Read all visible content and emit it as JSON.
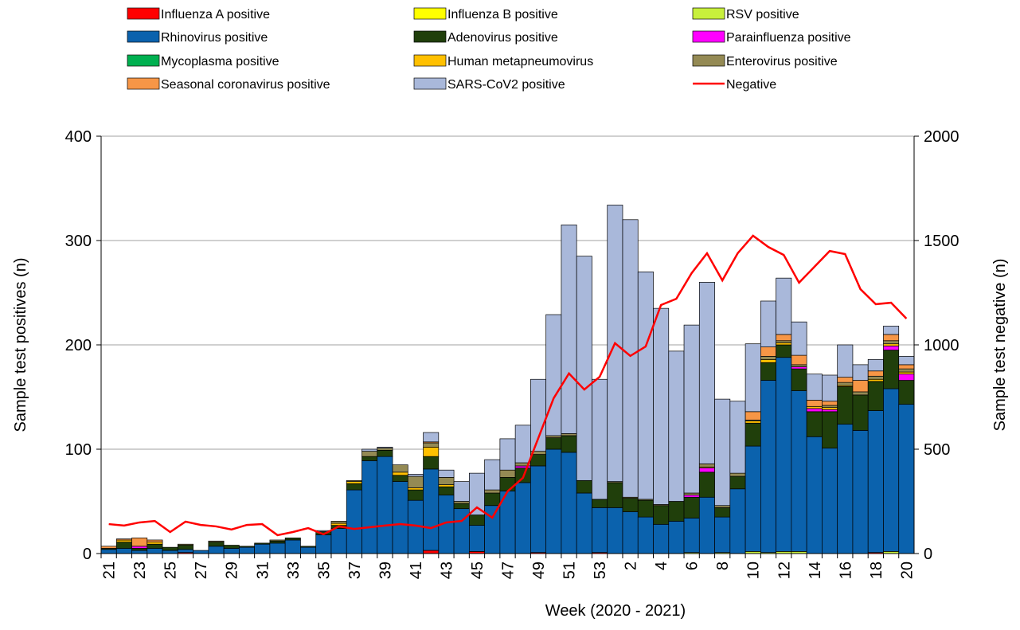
{
  "chart_data": {
    "type": "bar",
    "stacked": true,
    "xlabel": "Week (2020 - 2021)",
    "ylabel": "Sample test positives (n)",
    "y2label": "Sample test negative (n)",
    "categories": [
      "21",
      null,
      "23",
      null,
      "25",
      null,
      "27",
      null,
      "29",
      null,
      "31",
      null,
      "33",
      null,
      "35",
      null,
      "37",
      null,
      "39",
      null,
      "41",
      null,
      "43",
      null,
      "45",
      null,
      "47",
      null,
      "49",
      null,
      "51",
      null,
      "53",
      null,
      "2",
      null,
      "4",
      null,
      "6",
      null,
      "8",
      null,
      "10",
      null,
      "12",
      null,
      "14",
      null,
      "16",
      null,
      "18",
      null,
      "20"
    ],
    "ylim": [
      0,
      400
    ],
    "yticks": [
      0,
      100,
      200,
      300,
      400
    ],
    "y2lim": [
      0,
      2000
    ],
    "y2ticks": [
      0,
      500,
      1000,
      1500,
      2000
    ],
    "grid": true,
    "series": [
      {
        "name": "Influenza A positive",
        "color": "#ff0000",
        "values": [
          0,
          0,
          0,
          0,
          0,
          1,
          0,
          0,
          0,
          0,
          0,
          0,
          0,
          0,
          0,
          0,
          0,
          0,
          0,
          0,
          0,
          3,
          0,
          0,
          2,
          0,
          0,
          0,
          1,
          0,
          0,
          0,
          1,
          0,
          0,
          0,
          0,
          0,
          0,
          0,
          0,
          0,
          0,
          0,
          0,
          0,
          0,
          0,
          0,
          0,
          1,
          0,
          0
        ]
      },
      {
        "name": "Influenza B positive",
        "color": "#ffff00",
        "values": [
          0,
          0,
          0,
          0,
          0,
          0,
          0,
          0,
          0,
          0,
          0,
          0,
          0,
          0,
          0,
          0,
          0,
          0,
          0,
          0,
          0,
          0,
          0,
          0,
          0,
          0,
          0,
          0,
          0,
          0,
          0,
          0,
          0,
          0,
          0,
          0,
          0,
          0,
          0,
          0,
          0,
          0,
          0,
          0,
          0,
          0,
          0,
          0,
          0,
          0,
          0,
          0,
          0
        ]
      },
      {
        "name": "RSV positive",
        "color": "#c8f03c",
        "values": [
          0,
          0,
          0,
          0,
          0,
          0,
          0,
          0,
          0,
          0,
          0,
          0,
          0,
          0,
          0,
          0,
          0,
          0,
          0,
          0,
          0,
          0,
          0,
          0,
          0,
          0,
          0,
          0,
          0,
          0,
          0,
          0,
          0,
          0,
          0,
          0,
          0,
          0,
          1,
          0,
          1,
          0,
          2,
          1,
          2,
          2,
          0,
          0,
          0,
          0,
          0,
          2,
          0
        ]
      },
      {
        "name": "Rhinovirus positive",
        "color": "#0b62ad",
        "values": [
          4,
          5,
          3,
          5,
          3,
          3,
          3,
          7,
          5,
          6,
          9,
          10,
          13,
          6,
          18,
          24,
          61,
          89,
          93,
          69,
          51,
          78,
          56,
          43,
          25,
          46,
          60,
          68,
          83,
          100,
          97,
          58,
          43,
          44,
          40,
          35,
          28,
          31,
          33,
          54,
          34,
          62,
          101,
          165,
          186,
          154,
          112,
          101,
          124,
          118,
          136,
          156,
          143
        ]
      },
      {
        "name": "Adenovirus positive",
        "color": "#203f0b",
        "values": [
          1,
          6,
          2,
          4,
          3,
          4,
          0,
          4,
          3,
          1,
          1,
          2,
          2,
          1,
          3,
          3,
          6,
          4,
          6,
          6,
          10,
          12,
          8,
          5,
          10,
          12,
          13,
          14,
          11,
          11,
          16,
          12,
          8,
          24,
          13,
          16,
          18,
          19,
          20,
          24,
          9,
          12,
          22,
          17,
          12,
          21,
          24,
          35,
          36,
          34,
          28,
          37,
          23
        ]
      },
      {
        "name": "Parainfluenza positive",
        "color": "#ff00ff",
        "values": [
          0,
          0,
          2,
          0,
          0,
          0,
          0,
          0,
          0,
          0,
          0,
          0,
          0,
          0,
          0,
          0,
          0,
          0,
          0,
          0,
          0,
          0,
          0,
          0,
          0,
          0,
          0,
          2,
          0,
          0,
          0,
          0,
          0,
          0,
          0,
          0,
          0,
          0,
          2,
          4,
          0,
          0,
          0,
          0,
          0,
          2,
          3,
          2,
          0,
          0,
          0,
          4,
          6
        ]
      },
      {
        "name": "Mycoplasma positive",
        "color": "#00b050",
        "values": [
          0,
          0,
          0,
          0,
          0,
          0,
          0,
          0,
          0,
          0,
          0,
          0,
          0,
          0,
          0,
          0,
          0,
          0,
          0,
          0,
          0,
          0,
          0,
          0,
          0,
          0,
          0,
          0,
          0,
          0,
          0,
          0,
          0,
          0,
          0,
          0,
          0,
          0,
          0,
          0,
          0,
          0,
          0,
          0,
          0,
          0,
          0,
          0,
          0,
          0,
          0,
          0,
          0
        ]
      },
      {
        "name": "Human metapneumovirus",
        "color": "#ffc000",
        "values": [
          0,
          2,
          0,
          2,
          0,
          0,
          0,
          0,
          0,
          0,
          0,
          0,
          0,
          0,
          0,
          2,
          2,
          0,
          0,
          3,
          2,
          9,
          2,
          0,
          0,
          0,
          0,
          0,
          0,
          0,
          0,
          0,
          0,
          0,
          0,
          0,
          0,
          0,
          0,
          1,
          0,
          0,
          2,
          3,
          2,
          0,
          2,
          2,
          1,
          0,
          2,
          2,
          2
        ]
      },
      {
        "name": "Enterovirus positive",
        "color": "#948a54",
        "values": [
          0,
          0,
          0,
          0,
          0,
          1,
          0,
          1,
          0,
          0,
          0,
          1,
          0,
          0,
          0,
          2,
          1,
          5,
          2,
          7,
          11,
          4,
          7,
          2,
          0,
          3,
          7,
          3,
          3,
          2,
          2,
          0,
          0,
          1,
          1,
          1,
          1,
          0,
          2,
          3,
          2,
          3,
          1,
          3,
          2,
          2,
          0,
          2,
          3,
          3,
          3,
          3,
          3
        ]
      },
      {
        "name": "Seasonal coronavirus positive",
        "color": "#f79646",
        "values": [
          2,
          1,
          8,
          2,
          0,
          0,
          0,
          0,
          0,
          0,
          0,
          0,
          0,
          0,
          0,
          0,
          0,
          0,
          0,
          0,
          0,
          1,
          0,
          0,
          0,
          0,
          0,
          0,
          0,
          0,
          0,
          0,
          0,
          0,
          0,
          0,
          0,
          0,
          0,
          0,
          0,
          0,
          8,
          9,
          6,
          9,
          6,
          4,
          5,
          11,
          5,
          6,
          4
        ]
      },
      {
        "name": "SARS-CoV2 positive",
        "color": "#a9b8da",
        "values": [
          0,
          0,
          0,
          0,
          0,
          0,
          0,
          0,
          0,
          0,
          0,
          0,
          0,
          0,
          1,
          0,
          0,
          2,
          1,
          0,
          2,
          9,
          7,
          19,
          40,
          29,
          30,
          36,
          69,
          116,
          200,
          215,
          115,
          265,
          266,
          218,
          188,
          144,
          161,
          174,
          102,
          69,
          65,
          44,
          54,
          32,
          25,
          25,
          31,
          15,
          11,
          8,
          8
        ]
      },
      {
        "name": "Negative",
        "color": "#ff0000",
        "type": "line",
        "axis": "y2",
        "values": [
          141,
          134,
          149,
          156,
          103,
          153,
          137,
          130,
          115,
          137,
          141,
          88,
          103,
          122,
          92,
          130,
          118,
          126,
          134,
          141,
          134,
          122,
          149,
          156,
          221,
          172,
          298,
          363,
          553,
          744,
          863,
          786,
          847,
          1008,
          947,
          992,
          1191,
          1221,
          1344,
          1439,
          1309,
          1439,
          1523,
          1469,
          1431,
          1298,
          1374,
          1450,
          1435,
          1267,
          1195,
          1202,
          1126
        ]
      }
    ]
  }
}
